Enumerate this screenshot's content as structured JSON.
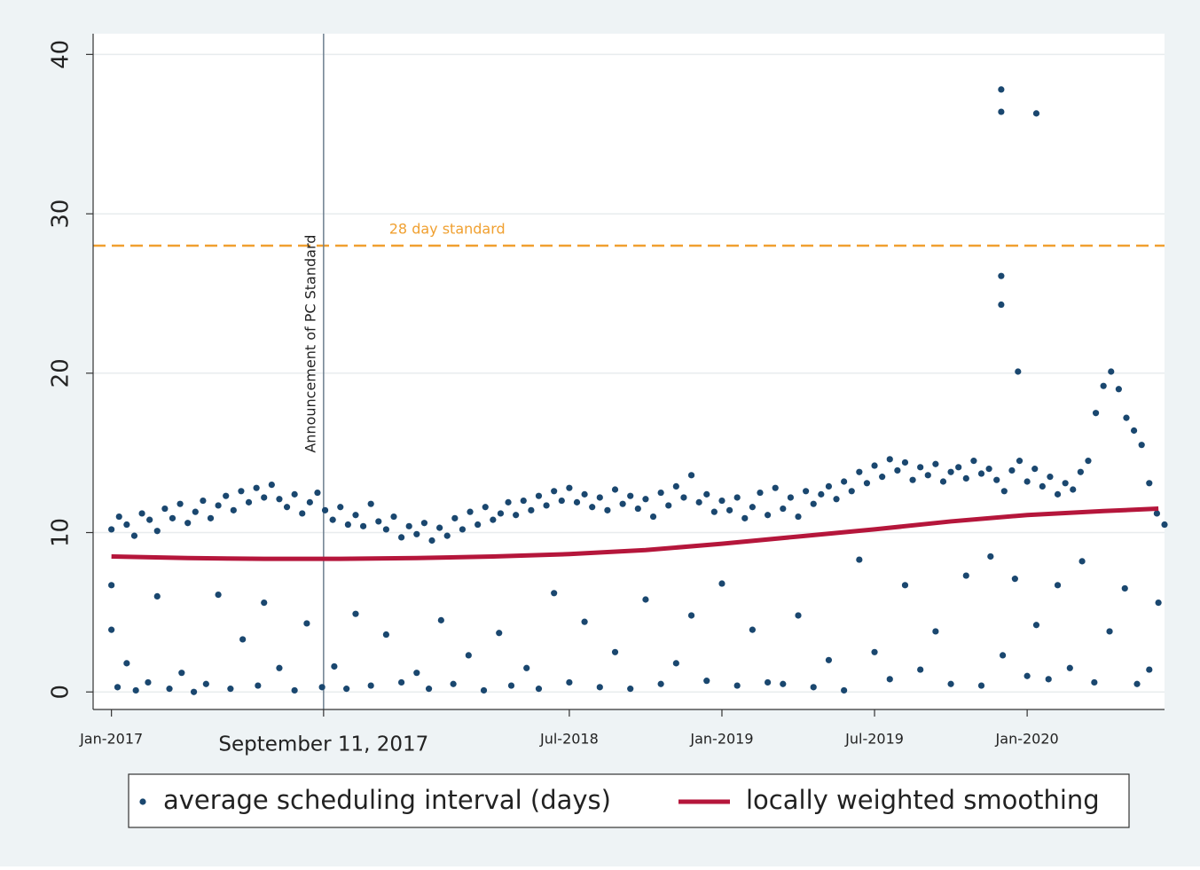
{
  "chart_data": {
    "type": "scatter",
    "xlim": [
      2016.94,
      2020.45
    ],
    "ylim": [
      -1.1,
      41.3
    ],
    "xticks": [
      {
        "value": 2017.0,
        "label": "Jan-2017"
      },
      {
        "value": 2017.695,
        "label": "September 11, 2017"
      },
      {
        "value": 2018.5,
        "label": "Jul-2018"
      },
      {
        "value": 2019.0,
        "label": "Jan-2019"
      },
      {
        "value": 2019.5,
        "label": "Jul-2019"
      },
      {
        "value": 2020.0,
        "label": "Jan-2020"
      }
    ],
    "yticks": [
      0,
      10,
      20,
      30,
      40
    ],
    "grid": true,
    "legend": "bottom",
    "vline": {
      "x": 2017.695,
      "label": "Announcement of PC Standard",
      "color": "#6d7f8f"
    },
    "hline": {
      "y": 28,
      "label": "28 day standard",
      "color": "#f0a030"
    },
    "series": [
      {
        "name": "average scheduling interval (days)",
        "color": "#1a476f",
        "x": [
          2017.0,
          2017.025,
          2017.05,
          2017.075,
          2017.1,
          2017.125,
          2017.15,
          2017.175,
          2017.2,
          2017.225,
          2017.25,
          2017.275,
          2017.3,
          2017.325,
          2017.35,
          2017.375,
          2017.4,
          2017.425,
          2017.45,
          2017.475,
          2017.5,
          2017.525,
          2017.55,
          2017.575,
          2017.6,
          2017.625,
          2017.65,
          2017.675,
          2017.7,
          2017.725,
          2017.75,
          2017.775,
          2017.8,
          2017.825,
          2017.85,
          2017.875,
          2017.9,
          2017.925,
          2017.95,
          2017.975,
          2018.0,
          2018.025,
          2018.05,
          2018.075,
          2018.1,
          2018.125,
          2018.15,
          2018.175,
          2018.2,
          2018.225,
          2018.25,
          2018.275,
          2018.3,
          2018.325,
          2018.35,
          2018.375,
          2018.4,
          2018.425,
          2018.45,
          2018.475,
          2018.5,
          2018.525,
          2018.55,
          2018.575,
          2018.6,
          2018.625,
          2018.65,
          2018.675,
          2018.7,
          2018.725,
          2018.75,
          2018.775,
          2018.8,
          2018.825,
          2018.85,
          2018.875,
          2018.9,
          2018.925,
          2018.95,
          2018.975,
          2019.0,
          2019.025,
          2019.05,
          2019.075,
          2019.1,
          2019.125,
          2019.15,
          2019.175,
          2019.2,
          2019.225,
          2019.25,
          2019.275,
          2019.3,
          2019.325,
          2019.35,
          2019.375,
          2019.4,
          2019.425,
          2019.45,
          2019.475,
          2019.5,
          2019.525,
          2019.55,
          2019.575,
          2019.6,
          2019.625,
          2019.65,
          2019.675,
          2019.7,
          2019.725,
          2019.75,
          2019.775,
          2019.8,
          2019.825,
          2019.85,
          2019.875,
          2019.9,
          2019.925,
          2019.95,
          2019.975,
          2020.0,
          2020.025,
          2020.05,
          2020.075,
          2020.1,
          2020.125,
          2020.15,
          2020.175,
          2020.2,
          2020.225,
          2020.25,
          2020.275,
          2020.3,
          2020.325,
          2020.35,
          2020.375,
          2020.4,
          2020.425,
          2020.45,
          2017.02,
          2017.05,
          2017.08,
          2017.12,
          2017.15,
          2017.19,
          2017.23,
          2017.27,
          2017.31,
          2017.35,
          2017.39,
          2017.43,
          2017.48,
          2017.5,
          2017.55,
          2017.6,
          2017.64,
          2017.69,
          2017.73,
          2017.77,
          2017.8,
          2017.85,
          2017.9,
          2017.95,
          2018.0,
          2018.04,
          2018.08,
          2018.12,
          2018.17,
          2018.22,
          2018.27,
          2018.31,
          2018.36,
          2018.4,
          2018.45,
          2018.5,
          2018.55,
          2018.6,
          2018.65,
          2018.7,
          2018.75,
          2018.8,
          2018.85,
          2018.9,
          2018.95,
          2019.0,
          2019.05,
          2019.1,
          2019.15,
          2019.2,
          2019.25,
          2019.3,
          2019.35,
          2019.4,
          2019.45,
          2019.5,
          2019.55,
          2019.6,
          2019.65,
          2019.7,
          2019.75,
          2019.8,
          2019.85,
          2019.88,
          2019.92,
          2019.96,
          2020.0,
          2020.03,
          2020.07,
          2020.1,
          2020.14,
          2020.18,
          2020.22,
          2020.27,
          2020.32,
          2020.36,
          2020.4,
          2020.43,
          2019.915,
          2019.915,
          2019.915,
          2019.915,
          2020.03,
          2019.97,
          2017.0,
          2017.0
        ],
        "values": [
          10.2,
          11.0,
          10.5,
          9.8,
          11.2,
          10.8,
          10.1,
          11.5,
          10.9,
          11.8,
          10.6,
          11.3,
          12.0,
          10.9,
          11.7,
          12.3,
          11.4,
          12.6,
          11.9,
          12.8,
          12.2,
          13.0,
          12.1,
          11.6,
          12.4,
          11.2,
          11.9,
          12.5,
          11.4,
          10.8,
          11.6,
          10.5,
          11.1,
          10.4,
          11.8,
          10.7,
          10.2,
          11.0,
          9.7,
          10.4,
          9.9,
          10.6,
          9.5,
          10.3,
          9.8,
          10.9,
          10.2,
          11.3,
          10.5,
          11.6,
          10.8,
          11.2,
          11.9,
          11.1,
          12.0,
          11.4,
          12.3,
          11.7,
          12.6,
          12.0,
          12.8,
          11.9,
          12.4,
          11.6,
          12.2,
          11.4,
          12.7,
          11.8,
          12.3,
          11.5,
          12.1,
          11.0,
          12.5,
          11.7,
          12.9,
          12.2,
          13.6,
          11.9,
          12.4,
          11.3,
          12.0,
          11.4,
          12.2,
          10.9,
          11.6,
          12.5,
          11.1,
          12.8,
          11.5,
          12.2,
          11.0,
          12.6,
          11.8,
          12.4,
          12.9,
          12.1,
          13.2,
          12.6,
          13.8,
          13.1,
          14.2,
          13.5,
          14.6,
          13.9,
          14.4,
          13.3,
          14.1,
          13.6,
          14.3,
          13.2,
          13.8,
          14.1,
          13.4,
          14.5,
          13.7,
          14.0,
          13.3,
          12.6,
          13.9,
          14.5,
          13.2,
          14.0,
          12.9,
          13.5,
          12.4,
          13.1,
          12.7,
          13.8,
          14.5,
          17.5,
          19.2,
          20.1,
          19.0,
          17.2,
          16.4,
          15.5,
          13.1,
          11.2,
          10.5,
          0.3,
          1.8,
          0.1,
          0.6,
          6.0,
          0.2,
          1.2,
          0.0,
          0.5,
          6.1,
          0.2,
          3.3,
          0.4,
          5.6,
          1.5,
          0.1,
          4.3,
          0.3,
          1.6,
          0.2,
          4.9,
          0.4,
          3.6,
          0.6,
          1.2,
          0.2,
          4.5,
          0.5,
          2.3,
          0.1,
          3.7,
          0.4,
          1.5,
          0.2,
          6.2,
          0.6,
          4.4,
          0.3,
          2.5,
          0.2,
          5.8,
          0.5,
          1.8,
          4.8,
          0.7,
          6.8,
          0.4,
          3.9,
          0.6,
          0.5,
          4.8,
          0.3,
          2.0,
          0.1,
          8.3,
          2.5,
          0.8,
          6.7,
          1.4,
          3.8,
          0.5,
          7.3,
          0.4,
          8.5,
          2.3,
          7.1,
          1.0,
          4.2,
          0.8,
          6.7,
          1.5,
          8.2,
          0.6,
          3.8,
          6.5,
          0.5,
          1.4,
          5.6,
          37.8,
          36.4,
          26.1,
          24.3,
          36.3,
          20.1,
          3.9,
          6.7
        ]
      },
      {
        "name": "locally weighted smoothing",
        "color": "#b5163b",
        "mode": "line",
        "x": [
          2017.0,
          2017.25,
          2017.5,
          2017.75,
          2018.0,
          2018.25,
          2018.5,
          2018.75,
          2019.0,
          2019.25,
          2019.5,
          2019.75,
          2020.0,
          2020.25,
          2020.43
        ],
        "values": [
          8.5,
          8.4,
          8.35,
          8.35,
          8.4,
          8.5,
          8.65,
          8.9,
          9.3,
          9.75,
          10.2,
          10.7,
          11.1,
          11.35,
          11.5
        ]
      }
    ]
  }
}
